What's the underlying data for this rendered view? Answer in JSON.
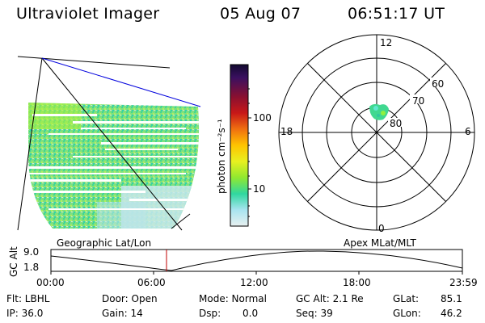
{
  "header": {
    "instrument": "Ultraviolet Imager",
    "date": "05 Aug 07",
    "time": "06:51:17 UT"
  },
  "colorbar": {
    "unit_label": "photon cm⁻²s⁻¹",
    "ticks": [
      "100",
      "10"
    ],
    "colors": [
      "#1a1040",
      "#3a1060",
      "#8a1030",
      "#c01020",
      "#e04010",
      "#ff9800",
      "#ffd000",
      "#e8ff20",
      "#a0f020",
      "#40e060",
      "#20d0c0",
      "#a0e8f0",
      "#e0f0f0"
    ]
  },
  "polar_plot": {
    "mlt_labels": {
      "top": "12",
      "left": "18",
      "right": "6",
      "bottom": "0"
    },
    "lat_labels": [
      "60",
      "70",
      "80"
    ]
  },
  "timeline": {
    "left_label": "Geographic Lat/Lon",
    "right_label": "Apex MLat/MLT",
    "axis_label": "GC Alt",
    "ymax": "9.0",
    "ymin": "1.8",
    "times": [
      "00:00",
      "06:00",
      "12:00",
      "18:00",
      "23:59"
    ],
    "marker_color": "#c00000"
  },
  "status": {
    "flt": "Flt: LBHL",
    "ip": "IP: 36.0",
    "door": "Door: Open",
    "gain": "Gain: 14",
    "mode": "Mode: Normal",
    "dsp": "Dsp:",
    "dsp_val": "0.0",
    "gcalt": "GC Alt: 2.1 Re",
    "seq": "Seq: 39",
    "glat": "GLat:",
    "glat_val": "85.1",
    "glon": "GLon:",
    "glon_val": "46.2"
  }
}
